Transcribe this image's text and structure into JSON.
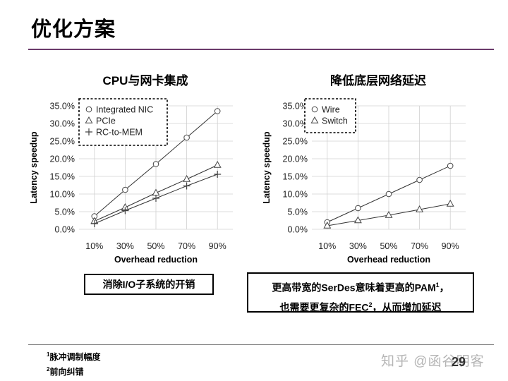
{
  "page_title": "优化方案",
  "chart_data": [
    {
      "type": "line",
      "title": "CPU与网卡集成",
      "xlabel": "Overhead reduction",
      "ylabel": "Latency speedup",
      "categories": [
        "10%",
        "30%",
        "50%",
        "70%",
        "90%"
      ],
      "x": [
        10,
        30,
        50,
        70,
        90
      ],
      "yticks": [
        "0.0%",
        "5.0%",
        "10.0%",
        "15.0%",
        "20.0%",
        "25.0%",
        "30.0%",
        "35.0%"
      ],
      "ylim": [
        0,
        35
      ],
      "xlim": [
        0,
        100
      ],
      "grid": true,
      "legend_position": "top-left",
      "series": [
        {
          "name": "Integrated NIC",
          "marker": "circle",
          "values": [
            3.7,
            11.2,
            18.5,
            26.0,
            33.5
          ]
        },
        {
          "name": "PCIe",
          "marker": "triangle",
          "values": [
            2.3,
            6.2,
            10.3,
            14.2,
            18.2
          ]
        },
        {
          "name": "RC-to-MEM",
          "marker": "plus",
          "values": [
            1.6,
            5.3,
            8.8,
            12.3,
            15.6
          ]
        }
      ]
    },
    {
      "type": "line",
      "title": "降低底层网络延迟",
      "xlabel": "Overhead reduction",
      "ylabel": "Latency speedup",
      "categories": [
        "10%",
        "30%",
        "50%",
        "70%",
        "90%"
      ],
      "x": [
        10,
        30,
        50,
        70,
        90
      ],
      "yticks": [
        "0.0%",
        "5.0%",
        "10.0%",
        "15.0%",
        "20.0%",
        "25.0%",
        "30.0%",
        "35.0%"
      ],
      "ylim": [
        0,
        35
      ],
      "xlim": [
        0,
        100
      ],
      "grid": true,
      "legend_position": "top-left",
      "series": [
        {
          "name": "Wire",
          "marker": "circle",
          "values": [
            2.0,
            6.0,
            10.0,
            14.0,
            18.0
          ]
        },
        {
          "name": "Switch",
          "marker": "triangle",
          "values": [
            1.0,
            2.5,
            4.0,
            5.6,
            7.2
          ]
        }
      ]
    }
  ],
  "notes": {
    "left": "消除I/O子系统的开销",
    "right_line1": "更高带宽的SerDes意味着更高的PAM",
    "right_line1_sup": "1",
    "right_line1_end": "，",
    "right_line2": "也需要更复杂的FEC",
    "right_line2_sup": "2",
    "right_line2_end": "，从而增加延迟"
  },
  "footnotes": [
    {
      "mark": "1",
      "text": "脉冲调制幅度"
    },
    {
      "mark": "2",
      "text": "前向纠错"
    }
  ],
  "watermark": "知乎 @函谷明客",
  "page_number": "29"
}
